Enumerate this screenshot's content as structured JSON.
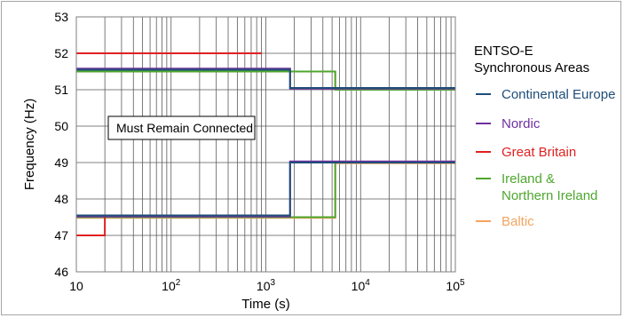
{
  "chart_data": {
    "type": "line",
    "xlabel": "Time (s)",
    "ylabel": "Frequency (Hz)",
    "x_scale": "log",
    "xlim": [
      10,
      100000
    ],
    "ylim": [
      46,
      53
    ],
    "grid": true,
    "x_ticks": [
      {
        "value": 10,
        "base": "10",
        "exp": ""
      },
      {
        "value": 100,
        "base": "10",
        "exp": "2"
      },
      {
        "value": 1000,
        "base": "10",
        "exp": "3"
      },
      {
        "value": 10000,
        "base": "10",
        "exp": "4"
      },
      {
        "value": 100000,
        "base": "10",
        "exp": "5"
      }
    ],
    "y_ticks": [
      46,
      47,
      48,
      49,
      50,
      51,
      52,
      53
    ],
    "legend_title": [
      "ENTSO-E",
      "Synchronous Areas"
    ],
    "legend_position": "right",
    "annotation": "Must Remain Connected",
    "series": [
      {
        "name": "Continental Europe",
        "color": "#1f4e79",
        "upper": [
          [
            10,
            51.55
          ],
          [
            1800,
            51.55
          ],
          [
            1800,
            51.05
          ],
          [
            100000,
            51.05
          ]
        ],
        "lower": [
          [
            10,
            47.55
          ],
          [
            1800,
            47.55
          ],
          [
            1800,
            49.0
          ],
          [
            100000,
            49.0
          ]
        ]
      },
      {
        "name": "Nordic",
        "color": "#7030a0",
        "upper": [
          [
            10,
            51.58
          ],
          [
            1800,
            51.58
          ],
          [
            1800,
            51.03
          ],
          [
            100000,
            51.03
          ]
        ],
        "lower": [
          [
            10,
            47.52
          ],
          [
            1800,
            47.52
          ],
          [
            1800,
            49.03
          ],
          [
            100000,
            49.03
          ]
        ]
      },
      {
        "name": "Great Britain",
        "color": "#e02020",
        "upper": [
          [
            10,
            52.0
          ],
          [
            900,
            52.0
          ]
        ],
        "lower": [
          [
            10,
            47.0
          ],
          [
            20,
            47.0
          ],
          [
            20,
            47.5
          ]
        ]
      },
      {
        "name": "Ireland & Northern Ireland",
        "color": "#4ea72e",
        "upper": [
          [
            10,
            51.5
          ],
          [
            5400,
            51.5
          ],
          [
            5400,
            51.0
          ],
          [
            100000,
            51.0
          ]
        ],
        "lower": [
          [
            10,
            47.5
          ],
          [
            5400,
            47.5
          ],
          [
            5400,
            49.0
          ],
          [
            100000,
            49.0
          ]
        ]
      },
      {
        "name": "Baltic",
        "color": "#f4a460",
        "upper": [
          [
            10,
            51.5
          ],
          [
            5400,
            51.5
          ],
          [
            5400,
            51.0
          ],
          [
            100000,
            51.0
          ]
        ],
        "lower": [
          [
            10,
            47.48
          ],
          [
            5400,
            47.48
          ],
          [
            5400,
            48.98
          ],
          [
            100000,
            48.98
          ]
        ]
      }
    ]
  }
}
